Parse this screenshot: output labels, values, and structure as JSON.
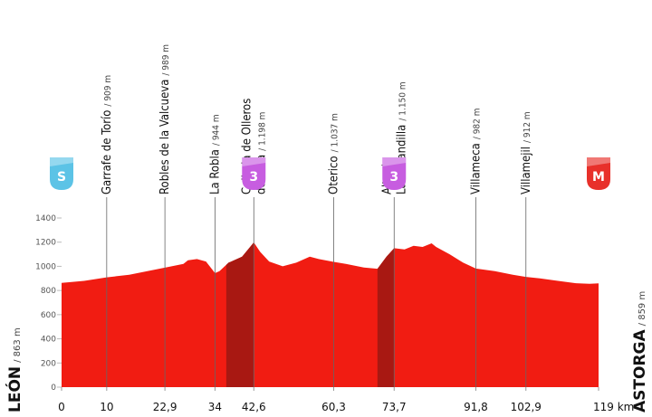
{
  "chart_data": {
    "type": "area",
    "x": [
      0,
      5,
      10,
      15,
      22.9,
      27,
      28,
      30,
      32,
      34,
      35,
      37,
      40,
      42.6,
      44,
      46,
      49,
      52,
      55,
      57,
      60.3,
      63,
      67,
      70,
      72,
      73.7,
      76,
      78,
      80,
      82,
      83,
      86,
      89,
      91.8,
      96,
      100,
      102.9,
      106,
      110,
      114,
      117,
      119
    ],
    "values": [
      863,
      880,
      909,
      930,
      989,
      1020,
      1050,
      1060,
      1040,
      944,
      960,
      1030,
      1080,
      1198,
      1120,
      1040,
      1000,
      1030,
      1080,
      1060,
      1037,
      1020,
      990,
      980,
      1080,
      1150,
      1140,
      1170,
      1160,
      1190,
      1160,
      1100,
      1030,
      982,
      960,
      930,
      912,
      900,
      880,
      860,
      855,
      859
    ],
    "color": "#f11c12",
    "climbs": [
      {
        "start": 36.5,
        "end": 42.6
      },
      {
        "start": 70,
        "end": 73.7
      }
    ],
    "climb_color": "#a81812",
    "xlim": [
      0,
      119
    ],
    "ylim": [
      0,
      1400
    ],
    "xticks": [
      0,
      10,
      {
        "value": 22.9,
        "label": "22,9"
      },
      34,
      {
        "value": 42.6,
        "label": "42,6"
      },
      {
        "value": 60.3,
        "label": "60,3"
      },
      {
        "value": 73.7,
        "label": "73,7"
      },
      {
        "value": 91.8,
        "label": "91,8"
      },
      {
        "value": 102.9,
        "label": "102,9"
      },
      {
        "value": 119,
        "label": "119 km"
      }
    ],
    "yticks": [
      0,
      200,
      400,
      600,
      800,
      1000,
      1200,
      1400
    ],
    "start": {
      "name": "LEÓN",
      "elevation": {
        "value": 863,
        "label": "/ 863 m"
      }
    },
    "finish": {
      "name": "ASTORGA",
      "elevation": {
        "value": 859,
        "label": "/ 859 m"
      }
    },
    "waypoints": [
      {
        "x": 10,
        "name": [
          "Garrafe de Torío"
        ],
        "elevation": {
          "value": 909,
          "label": "/ 909 m"
        }
      },
      {
        "x": 22.9,
        "name": [
          "Robles de la Valcueva"
        ],
        "elevation": {
          "value": 989,
          "label": "/ 989 m"
        }
      },
      {
        "x": 34,
        "name": [
          "La Robla"
        ],
        "elevation": {
          "value": 944,
          "label": "/ 944 m"
        }
      },
      {
        "x": 42.6,
        "name": [
          "Collada de Olleros",
          "de Alba"
        ],
        "elevation": {
          "value": 1198,
          "label": "/ 1.198 m"
        }
      },
      {
        "x": 60.3,
        "name": [
          "Oterico"
        ],
        "elevation": {
          "value": 1037,
          "label": "/ 1.037 m"
        }
      },
      {
        "x": 73.7,
        "name": [
          "Alto de",
          "La Garandilla"
        ],
        "elevation": {
          "value": 1150,
          "label": "/ 1.150 m"
        }
      },
      {
        "x": 91.8,
        "name": [
          "Villameca"
        ],
        "elevation": {
          "value": 982,
          "label": "/ 982 m"
        }
      },
      {
        "x": 102.9,
        "name": [
          "Villamejil"
        ],
        "elevation": {
          "value": 912,
          "label": "/ 912 m"
        }
      }
    ],
    "badges": [
      {
        "x": 0,
        "label": "S",
        "color": "#5cc3e6"
      },
      {
        "x": 42.6,
        "label": "3",
        "color": "#c75de0"
      },
      {
        "x": 73.7,
        "label": "3",
        "color": "#c75de0"
      },
      {
        "x": 119,
        "label": "M",
        "color": "#e8302a"
      }
    ]
  }
}
